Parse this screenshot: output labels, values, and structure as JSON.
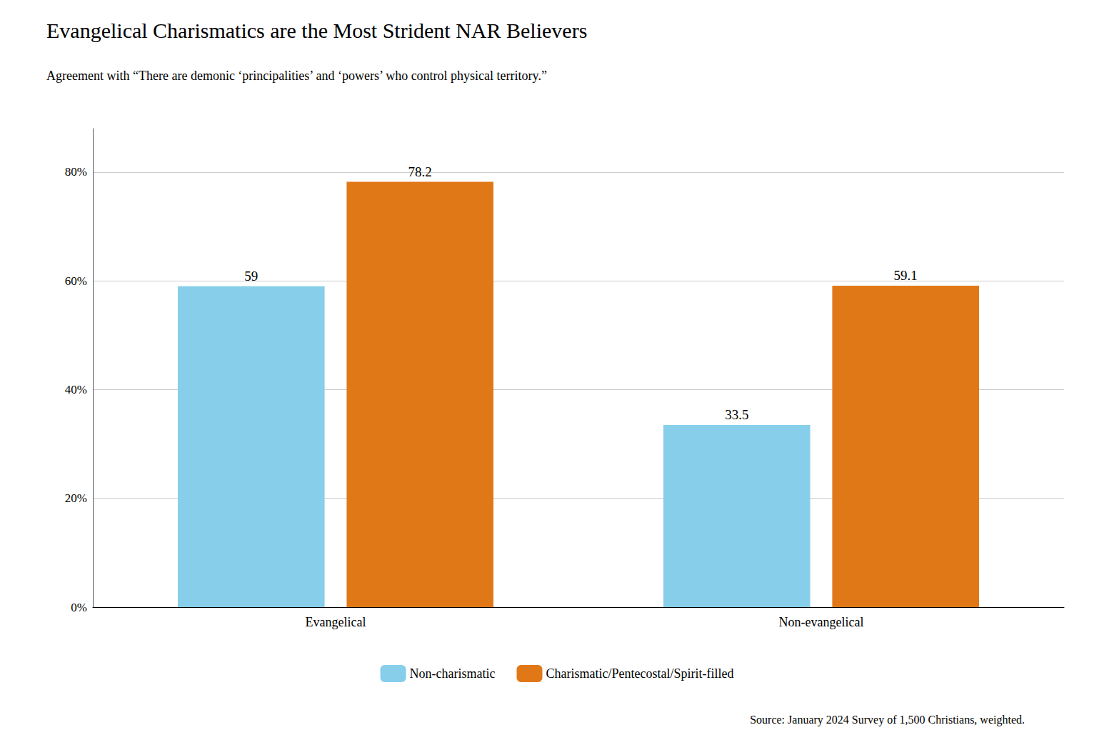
{
  "chart_data": {
    "type": "bar",
    "title": "Evangelical Charismatics are the Most Strident NAR Believers",
    "subtitle": "Agreement with “There are demonic ‘principalities’ and ‘powers’ who control physical territory.”",
    "source": "Source: January 2024 Survey of 1,500 Christians, weighted.",
    "categories": [
      "Evangelical",
      "Non-evangelical"
    ],
    "series": [
      {
        "name": "Non-charismatic",
        "color": "#87CEEB",
        "values": [
          59,
          33.5
        ]
      },
      {
        "name": "Charismatic/Pentecostal/Spirit-filled",
        "color": "#E07818",
        "values": [
          78.2,
          59.1
        ]
      }
    ],
    "ylim": [
      0,
      88
    ],
    "yticks": [
      {
        "value": 0,
        "label": "0%"
      },
      {
        "value": 20,
        "label": "20%"
      },
      {
        "value": 40,
        "label": "40%"
      },
      {
        "value": 60,
        "label": "60%"
      },
      {
        "value": 80,
        "label": "80%"
      }
    ],
    "grid": true,
    "legend": "bottom",
    "data_labels": true
  }
}
